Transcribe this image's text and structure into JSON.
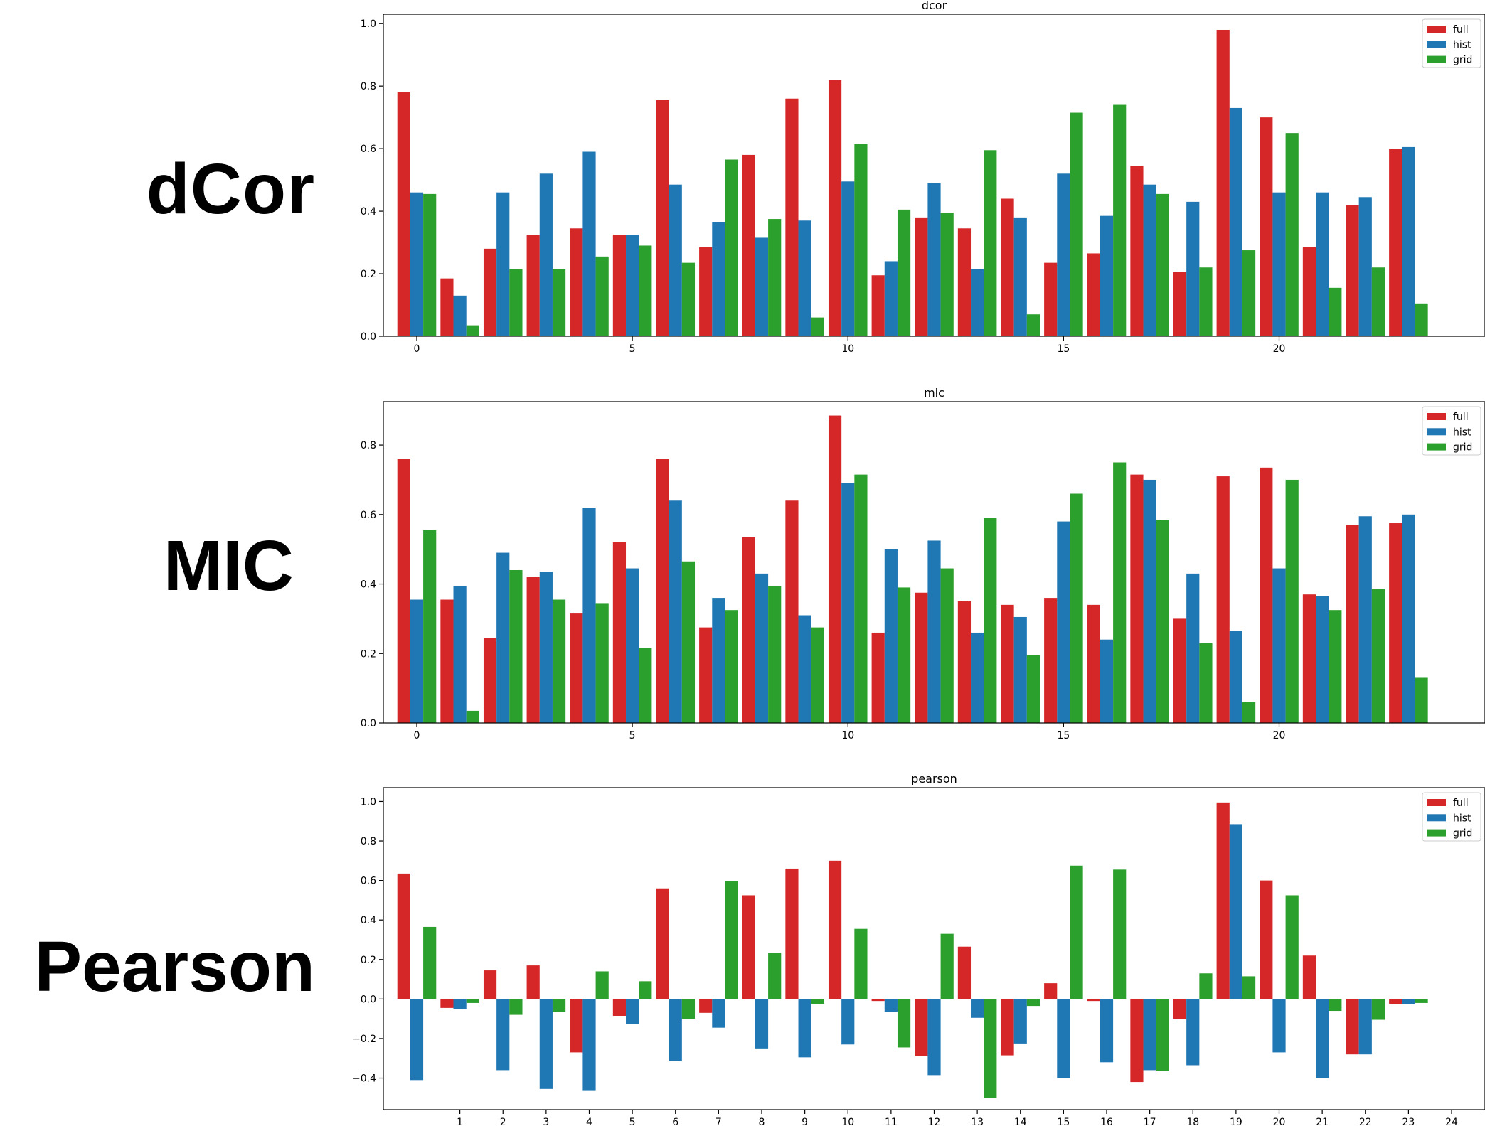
{
  "labels": {
    "dcor": "dCor",
    "mic": "MIC",
    "pearson": "Pearson"
  },
  "colors": {
    "full": "#d62728",
    "hist": "#1f77b4",
    "grid": "#2ca02c"
  },
  "chart_data": [
    {
      "type": "bar",
      "title": "dcor",
      "xlabel": "",
      "ylabel": "",
      "ylim": [
        0,
        1.03
      ],
      "yticks": [
        0.0,
        0.2,
        0.4,
        0.6,
        0.8,
        1.0
      ],
      "ytick_labels": [
        "0.0",
        "0.2",
        "0.4",
        "0.6",
        "0.8",
        "1.0"
      ],
      "x": [
        0,
        1,
        2,
        3,
        4,
        5,
        6,
        7,
        8,
        9,
        10,
        11,
        12,
        13,
        14,
        15,
        16,
        17,
        18,
        19,
        20,
        21,
        22,
        23
      ],
      "xticks": [
        0,
        5,
        10,
        15,
        20
      ],
      "xtick_labels": [
        "0",
        "5",
        "10",
        "15",
        "20"
      ],
      "legend": "top-right",
      "series": [
        {
          "name": "full",
          "values": [
            0.78,
            0.185,
            0.28,
            0.325,
            0.345,
            0.325,
            0.755,
            0.285,
            0.58,
            0.76,
            0.82,
            0.195,
            0.38,
            0.345,
            0.44,
            0.235,
            0.265,
            0.545,
            0.205,
            0.98,
            0.7,
            0.285,
            0.42,
            0.6
          ]
        },
        {
          "name": "hist",
          "values": [
            0.46,
            0.13,
            0.46,
            0.52,
            0.59,
            0.325,
            0.485,
            0.365,
            0.315,
            0.37,
            0.495,
            0.24,
            0.49,
            0.215,
            0.38,
            0.52,
            0.385,
            0.485,
            0.43,
            0.73,
            0.46,
            0.46,
            0.445,
            0.605
          ]
        },
        {
          "name": "grid",
          "values": [
            0.455,
            0.035,
            0.215,
            0.215,
            0.255,
            0.29,
            0.235,
            0.565,
            0.375,
            0.06,
            0.615,
            0.405,
            0.395,
            0.595,
            0.07,
            0.715,
            0.74,
            0.455,
            0.22,
            0.275,
            0.65,
            0.155,
            0.22,
            0.105
          ]
        }
      ]
    },
    {
      "type": "bar",
      "title": "mic",
      "xlabel": "",
      "ylabel": "",
      "ylim": [
        0,
        0.925
      ],
      "yticks": [
        0.0,
        0.2,
        0.4,
        0.6,
        0.8
      ],
      "ytick_labels": [
        "0.0",
        "0.2",
        "0.4",
        "0.6",
        "0.8"
      ],
      "x": [
        0,
        1,
        2,
        3,
        4,
        5,
        6,
        7,
        8,
        9,
        10,
        11,
        12,
        13,
        14,
        15,
        16,
        17,
        18,
        19,
        20,
        21,
        22,
        23
      ],
      "xticks": [
        0,
        5,
        10,
        15,
        20
      ],
      "xtick_labels": [
        "0",
        "5",
        "10",
        "15",
        "20"
      ],
      "legend": "top-right",
      "series": [
        {
          "name": "full",
          "values": [
            0.76,
            0.355,
            0.245,
            0.42,
            0.315,
            0.52,
            0.76,
            0.275,
            0.535,
            0.64,
            0.885,
            0.26,
            0.375,
            0.35,
            0.34,
            0.36,
            0.34,
            0.715,
            0.3,
            0.71,
            0.735,
            0.37,
            0.57,
            0.575
          ]
        },
        {
          "name": "hist",
          "values": [
            0.355,
            0.395,
            0.49,
            0.435,
            0.62,
            0.445,
            0.64,
            0.36,
            0.43,
            0.31,
            0.69,
            0.5,
            0.525,
            0.26,
            0.305,
            0.58,
            0.24,
            0.7,
            0.43,
            0.265,
            0.445,
            0.365,
            0.595,
            0.6
          ]
        },
        {
          "name": "grid",
          "values": [
            0.555,
            0.035,
            0.44,
            0.355,
            0.345,
            0.215,
            0.465,
            0.325,
            0.395,
            0.275,
            0.715,
            0.39,
            0.445,
            0.59,
            0.195,
            0.66,
            0.75,
            0.585,
            0.23,
            0.06,
            0.7,
            0.325,
            0.385,
            0.13
          ]
        }
      ]
    },
    {
      "type": "bar",
      "title": "pearson",
      "xlabel": "",
      "ylabel": "",
      "ylim": [
        -0.56,
        1.07
      ],
      "yticks": [
        -0.4,
        -0.2,
        0.0,
        0.2,
        0.4,
        0.6,
        0.8,
        1.0
      ],
      "ytick_labels": [
        "−0.4",
        "−0.2",
        "0.0",
        "0.2",
        "0.4",
        "0.6",
        "0.8",
        "1.0"
      ],
      "x": [
        0,
        1,
        2,
        3,
        4,
        5,
        6,
        7,
        8,
        9,
        10,
        11,
        12,
        13,
        14,
        15,
        16,
        17,
        18,
        19,
        20,
        21,
        22,
        23
      ],
      "xticks": [
        1,
        2,
        3,
        4,
        5,
        6,
        7,
        8,
        9,
        10,
        11,
        12,
        13,
        14,
        15,
        16,
        17,
        18,
        19,
        20,
        21,
        22,
        23,
        24
      ],
      "xtick_labels": [
        "1",
        "2",
        "3",
        "4",
        "5",
        "6",
        "7",
        "8",
        "9",
        "10",
        "11",
        "12",
        "13",
        "14",
        "15",
        "16",
        "17",
        "18",
        "19",
        "20",
        "21",
        "22",
        "23",
        "24"
      ],
      "legend": "top-right",
      "series": [
        {
          "name": "full",
          "values": [
            0.635,
            -0.045,
            0.145,
            0.17,
            -0.27,
            -0.085,
            0.56,
            -0.07,
            0.525,
            0.66,
            0.7,
            -0.01,
            -0.29,
            0.265,
            -0.285,
            0.08,
            -0.01,
            -0.42,
            -0.1,
            0.995,
            0.6,
            0.22,
            -0.28,
            -0.025
          ]
        },
        {
          "name": "hist",
          "values": [
            -0.41,
            -0.05,
            -0.36,
            -0.455,
            -0.465,
            -0.125,
            -0.315,
            -0.145,
            -0.25,
            -0.295,
            -0.23,
            -0.065,
            -0.385,
            -0.095,
            -0.225,
            -0.4,
            -0.32,
            -0.36,
            -0.335,
            0.885,
            -0.27,
            -0.4,
            -0.28,
            -0.025
          ]
        },
        {
          "name": "grid",
          "values": [
            0.365,
            -0.02,
            -0.08,
            -0.065,
            0.14,
            0.09,
            -0.1,
            0.595,
            0.235,
            -0.025,
            0.355,
            -0.245,
            0.33,
            -0.5,
            -0.035,
            0.675,
            0.655,
            -0.365,
            0.13,
            0.115,
            0.525,
            -0.06,
            -0.105,
            -0.02
          ]
        }
      ]
    }
  ]
}
